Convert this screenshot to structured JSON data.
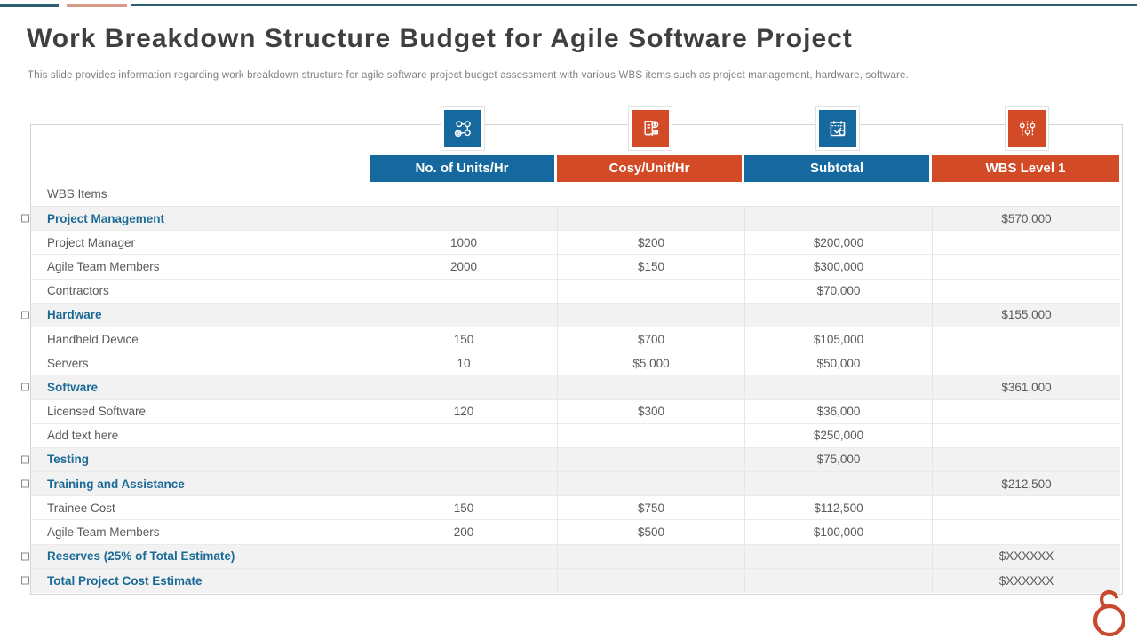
{
  "slide": {
    "title": "Work Breakdown Structure Budget for Agile Software Project",
    "subtitle": "This slide provides information regarding work breakdown structure for agile software project budget assessment with various WBS items such as project management, hardware, software."
  },
  "table": {
    "row_header_label": "WBS Items",
    "columns": [
      {
        "label": "No. of Units/Hr",
        "icon": "hierarchy-icon",
        "color": "#15699E"
      },
      {
        "label": "Cosy/Unit/Hr",
        "icon": "invoice-icon",
        "color": "#D24A26"
      },
      {
        "label": "Subtotal",
        "icon": "calendar-check-icon",
        "color": "#15699E"
      },
      {
        "label": "WBS Level 1",
        "icon": "sliders-icon",
        "color": "#D24A26"
      }
    ],
    "rows": [
      {
        "type": "category",
        "label": "Project Management",
        "units": "",
        "cost": "",
        "subtotal": "",
        "wbs": "$570,000"
      },
      {
        "type": "detail",
        "label": "Project Manager",
        "units": "1000",
        "cost": "$200",
        "subtotal": "$200,000",
        "wbs": ""
      },
      {
        "type": "detail",
        "label": "Agile  Team Members",
        "units": "2000",
        "cost": "$150",
        "subtotal": "$300,000",
        "wbs": ""
      },
      {
        "type": "detail",
        "label": "Contractors",
        "units": "",
        "cost": "",
        "subtotal": "$70,000",
        "wbs": ""
      },
      {
        "type": "category",
        "label": "Hardware",
        "units": "",
        "cost": "",
        "subtotal": "",
        "wbs": "$155,000"
      },
      {
        "type": "detail",
        "label": "Handheld  Device",
        "units": "150",
        "cost": "$700",
        "subtotal": "$105,000",
        "wbs": ""
      },
      {
        "type": "detail",
        "label": "Servers",
        "units": "10",
        "cost": "$5,000",
        "subtotal": "$50,000",
        "wbs": ""
      },
      {
        "type": "category",
        "label": "Software",
        "units": "",
        "cost": "",
        "subtotal": "",
        "wbs": "$361,000"
      },
      {
        "type": "detail",
        "label": "Licensed Software",
        "units": "120",
        "cost": "$300",
        "subtotal": "$36,000",
        "wbs": ""
      },
      {
        "type": "detail",
        "label": "Add text here",
        "units": "",
        "cost": "",
        "subtotal": "$250,000",
        "wbs": ""
      },
      {
        "type": "category",
        "label": "Testing",
        "units": "",
        "cost": "",
        "subtotal": "$75,000",
        "wbs": ""
      },
      {
        "type": "category",
        "label": "Training and Assistance",
        "units": "",
        "cost": "",
        "subtotal": "",
        "wbs": "$212,500"
      },
      {
        "type": "detail",
        "label": "Trainee  Cost",
        "units": "150",
        "cost": "$750",
        "subtotal": "$112,500",
        "wbs": ""
      },
      {
        "type": "detail",
        "label": "Agile  Team Members",
        "units": "200",
        "cost": "$500",
        "subtotal": "$100,000",
        "wbs": ""
      },
      {
        "type": "category",
        "label": "Reserves (25% of Total Estimate)",
        "units": "",
        "cost": "",
        "subtotal": "",
        "wbs": "$XXXXXX"
      },
      {
        "type": "category",
        "label": "Total Project Cost Estimate",
        "units": "",
        "cost": "",
        "subtotal": "",
        "wbs": "$XXXXXX"
      }
    ]
  },
  "colors": {
    "header_blue": "#15699E",
    "header_orange": "#D24A26",
    "category_text": "#1B6A96",
    "body_text": "#595959",
    "title_text": "#3F3F3F",
    "subtitle_text": "#7F7F7F",
    "stripe_background": "#F2F2F2",
    "top_bar_teal": "#2C5F6F",
    "top_bar_salmon": "#D89B89",
    "logo_red": "#C7492E"
  }
}
